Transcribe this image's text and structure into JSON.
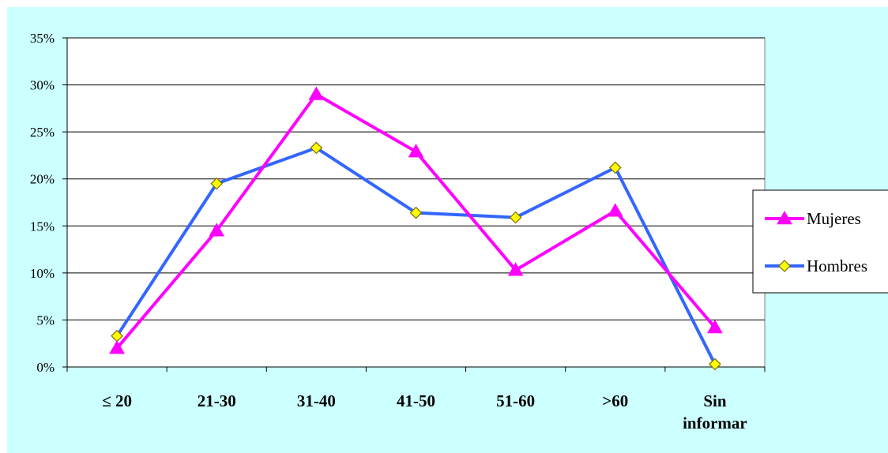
{
  "chart_data": {
    "type": "line",
    "categories": [
      "≤ 20",
      "21-30",
      "31-40",
      "41-50",
      "51-60",
      ">60",
      "Sin informar"
    ],
    "category_lines": [
      [
        "≤ 20"
      ],
      [
        "21-30"
      ],
      [
        "31-40"
      ],
      [
        "41-50"
      ],
      [
        "51-60"
      ],
      [
        ">60"
      ],
      [
        "Sin",
        "informar"
      ]
    ],
    "series": [
      {
        "name": "Mujeres",
        "color": "#ff00ff",
        "marker": "triangle",
        "values": [
          2.0,
          14.5,
          29.0,
          22.9,
          10.3,
          16.6,
          4.2
        ]
      },
      {
        "name": "Hombres",
        "color": "#3366ff",
        "marker": "diamond",
        "marker_fill": "#ffff00",
        "values": [
          3.3,
          19.5,
          23.3,
          16.4,
          15.9,
          21.2,
          0.3
        ]
      }
    ],
    "yticks": [
      "0%",
      "5%",
      "10%",
      "15%",
      "20%",
      "25%",
      "30%",
      "35%"
    ],
    "ylim": [
      0,
      35
    ],
    "grid": true,
    "legend": "right",
    "title": "",
    "xlabel": "",
    "ylabel": "",
    "colors": {
      "background": "#ccffff",
      "plot_area": "#ffffff"
    }
  }
}
